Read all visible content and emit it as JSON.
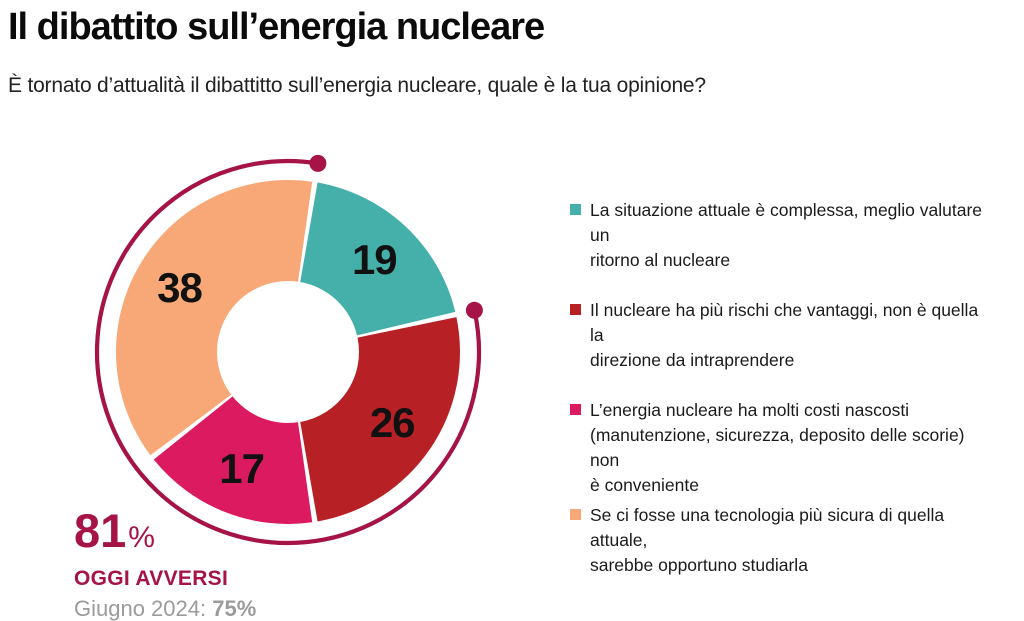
{
  "header": {
    "title": "Il dibattito sull’energia nucleare",
    "subtitle": "È tornato d’attualità il dibattitto sull’energia nucleare, quale è la tua opinione?"
  },
  "chart_data": {
    "type": "pie",
    "variant": "donut",
    "unit": "%",
    "start_angle_deg": 9,
    "direction": "clockwise",
    "legend_position": "right",
    "segments": [
      {
        "value": 19,
        "color": "#45AFAA",
        "label": "La situazione attuale è complessa, meglio valutare un\nritorno al nucleare"
      },
      {
        "value": 26,
        "color": "#B72126",
        "label": "Il nucleare ha più rischi che vantaggi, non è quella la\ndirezione da intraprendere"
      },
      {
        "value": 17,
        "color": "#DB1A60",
        "label": "L’energia nucleare ha molti costi nascosti\n(manutenzione, sicurezza, deposito delle scorie) non\nè conveniente"
      },
      {
        "value": 38,
        "color": "#F8A877",
        "label": "Se ci fosse una tecnologia più sicura di quella attuale,\nsarebbe opportuno studiarla"
      }
    ],
    "highlight_arc": {
      "value": 81,
      "color": "#A51347",
      "covers_segments": [
        1,
        2,
        3
      ]
    }
  },
  "stat": {
    "value": "81",
    "percent_sign": "%",
    "label": "OGGI AVVERSI",
    "comparison_prefix": "Giugno 2024: ",
    "comparison_value": "75%",
    "color": "#A51347",
    "comparison_color": "#9B9B9B"
  }
}
